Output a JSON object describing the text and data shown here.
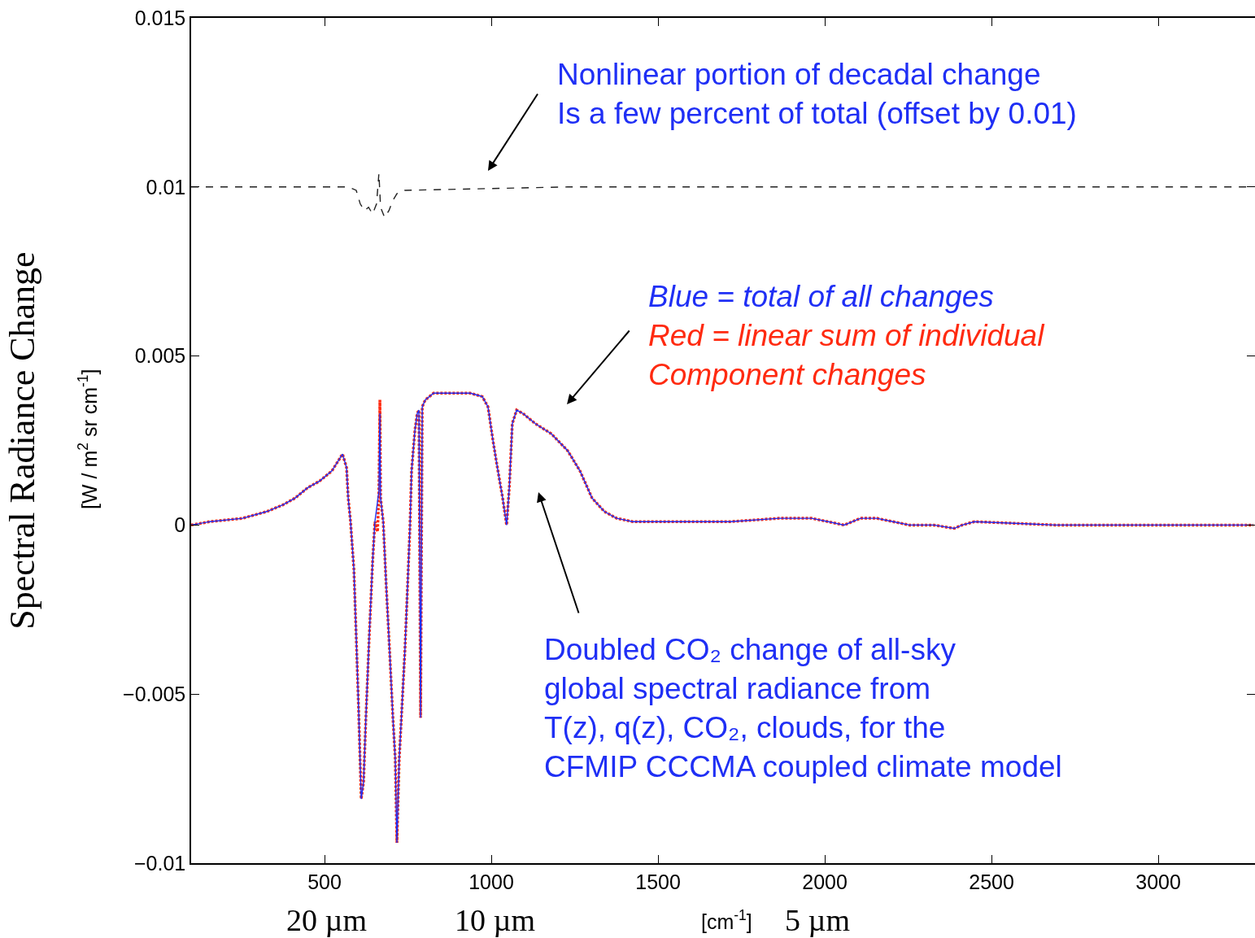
{
  "chart_data": {
    "type": "line",
    "ylabel": "Spectral Radiance Change",
    "xlim": [
      100,
      3290
    ],
    "ylim": [
      -0.01,
      0.015
    ],
    "xticks": [
      500,
      1000,
      1500,
      2000,
      2500,
      3000
    ],
    "yticks": [
      {
        "value": -0.01,
        "label": "−0.01"
      },
      {
        "value": -0.005,
        "label": "−0.005"
      },
      0,
      0.005,
      0.01,
      0.015
    ],
    "marker": "none",
    "series": [
      {
        "color": "#1f2ff5",
        "line_style": "solid",
        "x": [
          100,
          156,
          254,
          327,
          376,
          412,
          449,
          485,
          522,
          554,
          566,
          571,
          578,
          588,
          595,
          602,
          610,
          617,
          624,
          634,
          644,
          651,
          659,
          663,
          666,
          668,
          676,
          685,
          695,
          705,
          712,
          717,
          724,
          732,
          741,
          749,
          756,
          761,
          771,
          778,
          783,
          788,
          793,
          802,
          827,
          888,
          937,
          973,
          990,
          1005,
          1020,
          1034,
          1046,
          1054,
          1063,
          1076,
          1095,
          1132,
          1180,
          1229,
          1266,
          1302,
          1339,
          1376,
          1424,
          1595,
          1717,
          1863,
          1961,
          2058,
          2107,
          2156,
          2205,
          2254,
          2327,
          2388,
          2412,
          2449,
          2693,
          2937,
          3285
        ],
        "values": [
          0,
          0.0001,
          0.0002,
          0.0004,
          0.0006,
          0.0008,
          0.0011,
          0.0013,
          0.0016,
          0.0021,
          0.0017,
          0.0008,
          0.0001,
          -0.0013,
          -0.0033,
          -0.0054,
          -0.0081,
          -0.0076,
          -0.0057,
          -0.0033,
          -0.0011,
          0.0001,
          0.0007,
          0.001,
          0.0033,
          0.0008,
          0.0001,
          -0.0018,
          -0.0037,
          -0.0057,
          -0.0069,
          -0.0094,
          -0.0069,
          -0.0054,
          -0.0037,
          -0.0018,
          -0.0001,
          0.0016,
          0.0028,
          0.0033,
          0.0034,
          -0.0057,
          0.0035,
          0.0037,
          0.0039,
          0.0039,
          0.0039,
          0.0038,
          0.0035,
          0.0025,
          0.0016,
          0.0008,
          0,
          0.0011,
          0.003,
          0.0034,
          0.0033,
          0.003,
          0.0027,
          0.0022,
          0.0016,
          0.0008,
          0.0004,
          0.0002,
          0.0001,
          0.0001,
          0.0001,
          0.0002,
          0.0002,
          0,
          0.0002,
          0.0002,
          0.0001,
          0,
          0,
          -0.0001,
          0,
          0.0001,
          0,
          0,
          0
        ]
      },
      {
        "color": "#ff2a10",
        "line_style": "dotted",
        "x": [
          100,
          156,
          254,
          327,
          376,
          412,
          449,
          485,
          522,
          554,
          566,
          571,
          578,
          588,
          595,
          602,
          610,
          617,
          624,
          634,
          644,
          651,
          659,
          663,
          666,
          668,
          676,
          685,
          695,
          705,
          712,
          717,
          724,
          732,
          741,
          749,
          756,
          761,
          771,
          778,
          783,
          788,
          793,
          802,
          827,
          888,
          937,
          973,
          990,
          1005,
          1020,
          1034,
          1046,
          1054,
          1063,
          1076,
          1095,
          1132,
          1180,
          1229,
          1266,
          1302,
          1339,
          1376,
          1424,
          1595,
          1717,
          1863,
          1961,
          2058,
          2107,
          2156,
          2205,
          2254,
          2327,
          2388,
          2412,
          2449,
          2693,
          2937,
          3285
        ],
        "values": [
          0,
          0.0001,
          0.0002,
          0.0004,
          0.0006,
          0.0008,
          0.0011,
          0.0013,
          0.0016,
          0.0021,
          0.0017,
          0.0008,
          0.0001,
          -0.0013,
          -0.0033,
          -0.0054,
          -0.0081,
          -0.0076,
          -0.0057,
          -0.0033,
          -0.0011,
          0.0001,
          -0.0002,
          0.001,
          0.0037,
          0.0008,
          0.0001,
          -0.0018,
          -0.0037,
          -0.0057,
          -0.0069,
          -0.0094,
          -0.0069,
          -0.0054,
          -0.0037,
          -0.0018,
          -0.0001,
          0.0016,
          0.0028,
          0.0033,
          0.0034,
          -0.0057,
          0.0035,
          0.0037,
          0.0039,
          0.0039,
          0.0039,
          0.0038,
          0.0035,
          0.0025,
          0.0016,
          0.0008,
          0,
          0.0011,
          0.003,
          0.0034,
          0.0033,
          0.003,
          0.0027,
          0.0022,
          0.0016,
          0.0008,
          0.0004,
          0.0002,
          0.0001,
          0.0001,
          0.0001,
          0.0002,
          0.0002,
          0,
          0.0002,
          0.0002,
          0.0001,
          0,
          0,
          -0.0001,
          0,
          0.0001,
          0,
          0,
          0
        ]
      },
      {
        "color": "#222222",
        "line_style": "dashed",
        "x": [
          100,
          571,
          595,
          607,
          620,
          632,
          644,
          656,
          663,
          668,
          680,
          693,
          705,
          717,
          741,
          1229,
          3285
        ],
        "values": [
          0.01,
          0.01,
          0.0099,
          0.0095,
          0.0093,
          0.0094,
          0.0092,
          0.0095,
          0.0104,
          0.0094,
          0.0091,
          0.0093,
          0.0096,
          0.0098,
          0.0099,
          0.01,
          0.01
        ]
      }
    ],
    "annotations": [
      "Nonlinear portion of decadal change\nIs a few percent of total (offset by 0.01)",
      "Blue = total of all changes\nRed = linear sum of individual\nComponent changes",
      "Doubled CO₂ change of all-sky\nglobal spectral radiance from\nT(z), q(z), CO₂, clouds, for the\nCFMIP CCCMA coupled climate model",
      "[W / m$^{2}$ sr cm$^{-1}$]",
      "20 µm",
      "10 µm",
      "[cm$^{-1}$]",
      "5 µm"
    ]
  }
}
